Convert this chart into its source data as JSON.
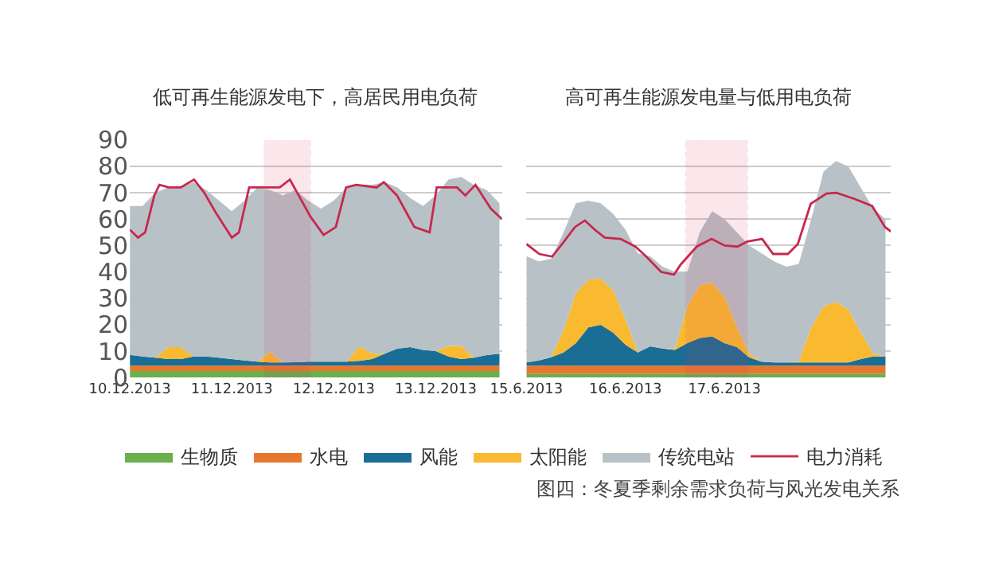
{
  "chart_data": [
    {
      "type": "area",
      "stacked": true,
      "title": "低可再生能源发电下，高居民用电负荷",
      "grid": "y",
      "legend": "bottom",
      "x": [
        "2013-12-10T00:00",
        "2013-12-10T03:00",
        "2013-12-10T06:00",
        "2013-12-10T09:00",
        "2013-12-10T12:00",
        "2013-12-10T15:00",
        "2013-12-10T18:00",
        "2013-12-10T21:00",
        "2013-12-11T00:00",
        "2013-12-11T03:00",
        "2013-12-11T06:00",
        "2013-12-11T09:00",
        "2013-12-11T12:00",
        "2013-12-11T15:00",
        "2013-12-11T18:00",
        "2013-12-11T21:00",
        "2013-12-12T00:00",
        "2013-12-12T03:00",
        "2013-12-12T06:00",
        "2013-12-12T09:00",
        "2013-12-12T12:00",
        "2013-12-12T15:00",
        "2013-12-12T18:00",
        "2013-12-12T21:00",
        "2013-12-13T00:00",
        "2013-12-13T03:00",
        "2013-12-13T06:00",
        "2013-12-13T09:00",
        "2013-12-13T12:00",
        "2013-12-13T15:00"
      ],
      "xlim": [
        "2013-12-10T00:00",
        "2013-12-13T15:36"
      ],
      "xticks": [
        {
          "value": "2013-12-10",
          "label": "10.12.2013"
        },
        {
          "value": "2013-12-11",
          "label": "11.12.2013"
        },
        {
          "value": "2013-12-12",
          "label": "12.12.2013"
        },
        {
          "value": "2013-12-13",
          "label": "13.12.2013"
        }
      ],
      "ylim": [
        0,
        90
      ],
      "yticks": [
        0,
        10,
        20,
        30,
        40,
        50,
        60,
        70,
        80,
        90
      ],
      "bands": [
        {
          "axis": "x",
          "from": "2013-12-11T07:41",
          "to": "2013-12-11T18:29",
          "color": "#d0305a"
        }
      ],
      "series": [
        {
          "name": "生物质",
          "color": "#6ab04c",
          "values": [
            2.5,
            2.5,
            2.5,
            2.5,
            2.5,
            2.5,
            2.5,
            2.5,
            2.5,
            2.5,
            2.5,
            2.5,
            2.5,
            2.5,
            2.5,
            2.5,
            2.5,
            2.5,
            2.5,
            2.5,
            2.5,
            2.5,
            2.5,
            2.5,
            2.5,
            2.5,
            2.5,
            2.5,
            2.5,
            2.5
          ]
        },
        {
          "name": "水电",
          "color": "#e8772e",
          "values": [
            2,
            2,
            2,
            2,
            2,
            2,
            2,
            2,
            2,
            2,
            2,
            2,
            2,
            2,
            2,
            2,
            2,
            2,
            2,
            2,
            2,
            2,
            2,
            2,
            2,
            2,
            2,
            2,
            2,
            2
          ]
        },
        {
          "name": "风能",
          "color": "#1a6e96",
          "values": [
            4.1,
            3.5,
            3,
            2.5,
            2.5,
            3.5,
            3.5,
            3,
            2.5,
            2,
            1.5,
            1.2,
            1.2,
            1.3,
            1.5,
            1.5,
            1.5,
            1.5,
            1.8,
            2.5,
            4.5,
            6.5,
            7,
            6,
            5.5,
            3.5,
            2.5,
            3,
            4,
            4.5
          ]
        },
        {
          "name": "太阳能",
          "color": "#f9b930",
          "values": [
            0,
            0,
            0,
            4.5,
            4.5,
            0,
            0,
            0,
            0,
            0,
            0,
            4,
            0,
            0,
            0,
            0,
            0,
            0,
            5.5,
            2,
            0,
            0,
            0,
            0,
            0,
            4,
            5,
            0,
            0,
            0
          ]
        },
        {
          "name": "传统电站",
          "color": "#b8c2c6",
          "values": [
            56.4,
            57,
            62.5,
            60.5,
            60.5,
            66,
            63,
            59.5,
            56,
            60.5,
            66,
            61.3,
            63.3,
            65.2,
            61,
            58,
            61,
            66,
            61.2,
            64,
            65,
            61,
            56.5,
            54.5,
            59,
            63,
            64,
            65.5,
            62.5,
            57
          ]
        },
        {
          "name": "电力消耗",
          "type": "line",
          "color": "#c8284e",
          "x": [
            "2013-12-10T00:00",
            "2013-12-10T01:55",
            "2013-12-10T03:36",
            "2013-12-10T05:46",
            "2013-12-10T06:58",
            "2013-12-10T09:07",
            "2013-12-10T12:00",
            "2013-12-10T15:07",
            "2013-12-10T17:31",
            "2013-12-10T20:24",
            "2013-12-11T00:00",
            "2013-12-11T01:41",
            "2013-12-11T04:05",
            "2013-12-11T06:29",
            "2013-12-11T11:17",
            "2013-12-11T13:41",
            "2013-12-11T18:29",
            "2013-12-11T21:36",
            "2013-12-12T00:29",
            "2013-12-12T02:53",
            "2013-12-12T05:17",
            "2013-12-12T10:05",
            "2013-12-12T11:46",
            "2013-12-12T14:53",
            "2013-12-12T18:58",
            "2013-12-12T22:34",
            "2013-12-13T00:14",
            "2013-12-13T05:02",
            "2013-12-13T06:58",
            "2013-12-13T09:22",
            "2013-12-13T12:58",
            "2013-12-13T15:36"
          ],
          "values": [
            56,
            53,
            55,
            69,
            73,
            72,
            72,
            75,
            70,
            62,
            53,
            55,
            72,
            72,
            72,
            75,
            61,
            54,
            57,
            72,
            73,
            72,
            74,
            69,
            57,
            55,
            72,
            72,
            69,
            73,
            64,
            60
          ]
        }
      ]
    },
    {
      "type": "area",
      "stacked": true,
      "title": "高可再生能源发电量与低用电负荷",
      "grid": "y",
      "tick_labels": "x",
      "x": [
        "2013-06-15T00:00",
        "2013-06-15T03:00",
        "2013-06-15T06:00",
        "2013-06-15T09:00",
        "2013-06-15T12:00",
        "2013-06-15T15:00",
        "2013-06-15T18:00",
        "2013-06-15T21:00",
        "2013-06-16T00:00",
        "2013-06-16T03:00",
        "2013-06-16T06:00",
        "2013-06-16T09:00",
        "2013-06-16T12:00",
        "2013-06-16T15:00",
        "2013-06-16T18:00",
        "2013-06-16T21:00",
        "2013-06-17T00:00",
        "2013-06-17T03:00",
        "2013-06-17T06:00",
        "2013-06-17T09:00",
        "2013-06-17T12:00",
        "2013-06-17T15:00",
        "2013-06-17T18:00",
        "2013-06-17T21:00",
        "2013-06-18T00:00",
        "2013-06-18T03:00",
        "2013-06-18T06:00",
        "2013-06-18T09:00",
        "2013-06-18T12:00",
        "2013-06-18T15:00"
      ],
      "xlim": [
        "2013-06-15T00:00",
        "2013-06-18T16:19"
      ],
      "xticks": [
        {
          "value": "2013-06-15",
          "label": "15.6.2013"
        },
        {
          "value": "2013-06-16",
          "label": "16.6.2013"
        },
        {
          "value": "2013-06-17",
          "label": "17.6.2013"
        }
      ],
      "ylim": [
        0,
        90
      ],
      "yticks": [
        0,
        10,
        20,
        30,
        40,
        50,
        60,
        70,
        80,
        90
      ],
      "bands": [
        {
          "axis": "x",
          "from": "2013-06-16T14:38",
          "to": "2013-06-17T05:31",
          "color": "#d0305a"
        }
      ],
      "annotations": [
        "图四：冬夏季剩余需求负荷与风光发电关系"
      ],
      "series": [
        {
          "color": "#6ab04c",
          "values": [
            1.5,
            1.5,
            1.5,
            1.5,
            1.5,
            1.5,
            1.5,
            1.5,
            1.5,
            1.5,
            1.5,
            1.5,
            1.5,
            1.5,
            1.5,
            1.5,
            1.5,
            1.5,
            1.5,
            1.5,
            1.5,
            1.5,
            1.5,
            1.5,
            1.5,
            1.5,
            1.5,
            1.5,
            1.5,
            1.5
          ]
        },
        {
          "color": "#e8772e",
          "values": [
            3,
            3,
            3,
            3,
            3,
            3,
            3,
            3,
            3,
            3,
            3,
            3,
            3,
            3,
            3,
            3,
            3,
            3,
            3,
            3,
            3,
            3,
            3,
            3,
            3,
            3,
            3,
            3,
            3,
            3
          ]
        },
        {
          "color": "#1a6e96",
          "values": [
            1.2,
            2,
            3.2,
            5,
            8.5,
            14.5,
            15.5,
            12.5,
            7.9,
            5,
            7.3,
            6.5,
            6,
            8.5,
            10.5,
            11.1,
            8.5,
            7,
            3.1,
            1.5,
            1.2,
            1.2,
            1.2,
            1.2,
            1.2,
            1.2,
            1.2,
            2.5,
            3.5,
            3.5
          ]
        },
        {
          "color": "#f9b930",
          "values": [
            0,
            0,
            0,
            8.5,
            19,
            18,
            17.5,
            16,
            9.6,
            0,
            0,
            0,
            0.5,
            14,
            20,
            20.4,
            17.5,
            7.5,
            1.4,
            0,
            0,
            0,
            0.3,
            13.3,
            21.3,
            22.9,
            20.1,
            10,
            1,
            0
          ]
        },
        {
          "color": "#b8c2c6",
          "values": [
            40.3,
            37.5,
            37.3,
            37,
            34,
            30,
            28.5,
            29,
            34,
            37.5,
            34.2,
            31,
            29,
            13,
            20,
            27,
            29.5,
            36,
            41,
            41,
            38.3,
            36.3,
            37,
            41,
            51,
            53.4,
            54.2,
            55,
            55,
            52
          ]
        },
        {
          "type": "line",
          "color": "#c8284e",
          "x": [
            "2013-06-15T00:00",
            "2013-06-15T03:07",
            "2013-06-15T06:14",
            "2013-06-15T09:07",
            "2013-06-15T11:46",
            "2013-06-15T14:10",
            "2013-06-15T16:34",
            "2013-06-15T18:58",
            "2013-06-15T22:48",
            "2013-06-16T02:24",
            "2013-06-16T05:02",
            "2013-06-16T08:38",
            "2013-06-16T11:46",
            "2013-06-16T13:26",
            "2013-06-16T17:17",
            "2013-06-16T20:53",
            "2013-06-17T00:00",
            "2013-06-17T03:07",
            "2013-06-17T05:31",
            "2013-06-17T09:07",
            "2013-06-17T11:46",
            "2013-06-17T15:22",
            "2013-06-17T17:46",
            "2013-06-17T20:53",
            "2013-06-18T00:43",
            "2013-06-18T03:07",
            "2013-06-18T07:26",
            "2013-06-18T11:46",
            "2013-06-18T14:53",
            "2013-06-18T16:19"
          ],
          "values": [
            50.6,
            46.8,
            45.8,
            51.5,
            57,
            59.5,
            56,
            53,
            52.5,
            49.6,
            45.8,
            40,
            39,
            42.9,
            49.6,
            52.5,
            50,
            49.6,
            51.5,
            52.5,
            46.8,
            46.8,
            50.6,
            65.8,
            69.7,
            70,
            67.7,
            65,
            57,
            55.3
          ]
        }
      ]
    }
  ]
}
